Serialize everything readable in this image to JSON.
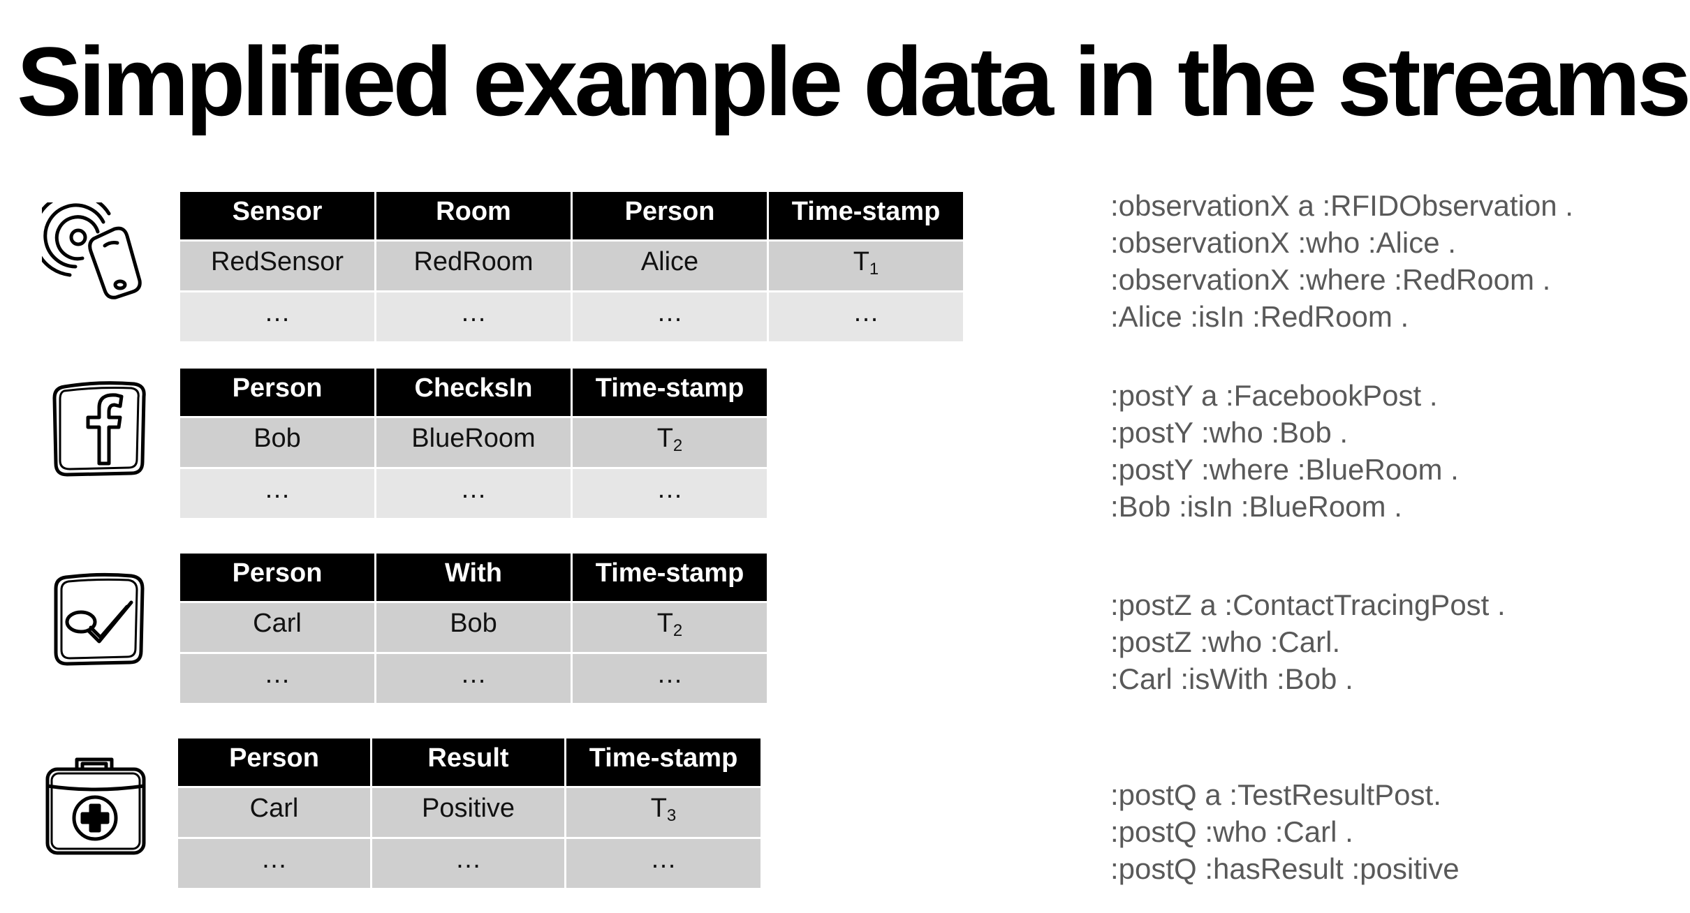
{
  "title": "Simplified example data in the streams",
  "tables": [
    {
      "headers": [
        "Sensor",
        "Room",
        "Person",
        "Time-stamp"
      ],
      "row1": [
        "RedSensor",
        "RedRoom",
        "Alice",
        "T",
        "1"
      ],
      "row2": [
        "…",
        "…",
        "…",
        "…"
      ]
    },
    {
      "headers": [
        "Person",
        "ChecksIn",
        "Time-stamp"
      ],
      "row1": [
        "Bob",
        "BlueRoom",
        "T",
        "2"
      ],
      "row2": [
        "…",
        "…",
        "…"
      ]
    },
    {
      "headers": [
        "Person",
        "With",
        "Time-stamp"
      ],
      "row1": [
        "Carl",
        "Bob",
        "T",
        "2"
      ],
      "row2": [
        "…",
        "…",
        "…"
      ]
    },
    {
      "headers": [
        "Person",
        "Result",
        "Time-stamp"
      ],
      "row1": [
        "Carl",
        "Positive",
        "T",
        "3"
      ],
      "row2": [
        "…",
        "…",
        "…"
      ]
    }
  ],
  "rdf": [
    [
      ":observationX a :RFIDObservation .",
      ":observationX :who :Alice .",
      ":observationX :where :RedRoom .",
      ":Alice :isIn :RedRoom ."
    ],
    [
      ":postY a :FacebookPost .",
      ":postY :who :Bob .",
      ":postY :where :BlueRoom .",
      ":Bob :isIn :BlueRoom ."
    ],
    [
      ":postZ a :ContactTracingPost .",
      ":postZ :who :Carl.",
      ":Carl :isWith :Bob ."
    ],
    [
      ":postQ a :TestResultPost.",
      ":postQ :who :Carl .",
      ":postQ :hasResult :positive"
    ]
  ],
  "icons": [
    "rfid-sensor-icon",
    "facebook-icon",
    "contact-tracing-icon",
    "medical-kit-icon"
  ]
}
